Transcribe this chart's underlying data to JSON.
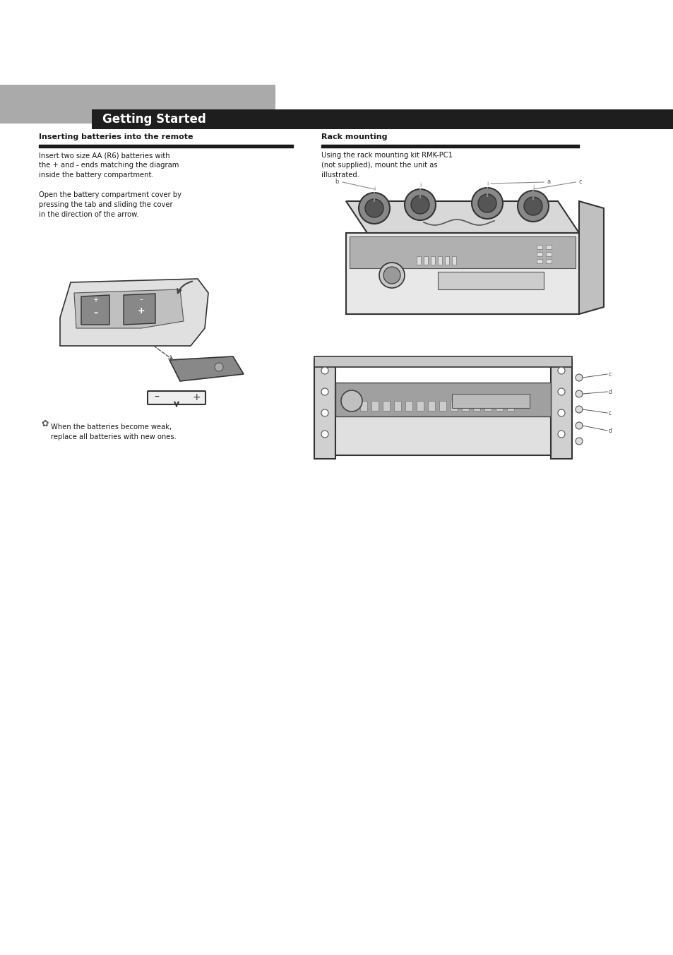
{
  "page_bg": "#ffffff",
  "header_gray_color": "#aaaaaa",
  "header_black_color": "#1e1e1e",
  "header_text": "Getting Started",
  "header_text_color": "#ffffff",
  "section_line_color": "#1a1a1a",
  "section1_title": "Inserting batteries into the remote",
  "section2_title": "Rack mounting",
  "body_text_color": "#1a1a1a",
  "section1_body": "Insert two size AA (R6) batteries with\nthe + and - ends matching the diagram\ninside the battery compartment.\n\nOpen the battery compartment cover by\npressing the tab and sliding the cover\nin the direction of the arrow.",
  "section2_body": "Using the rack mounting kit RMK-PC1\n(not supplied), mount the unit as\nillustrated.",
  "tip_text": "When the batteries become weak,\nreplace all batteries with new ones."
}
